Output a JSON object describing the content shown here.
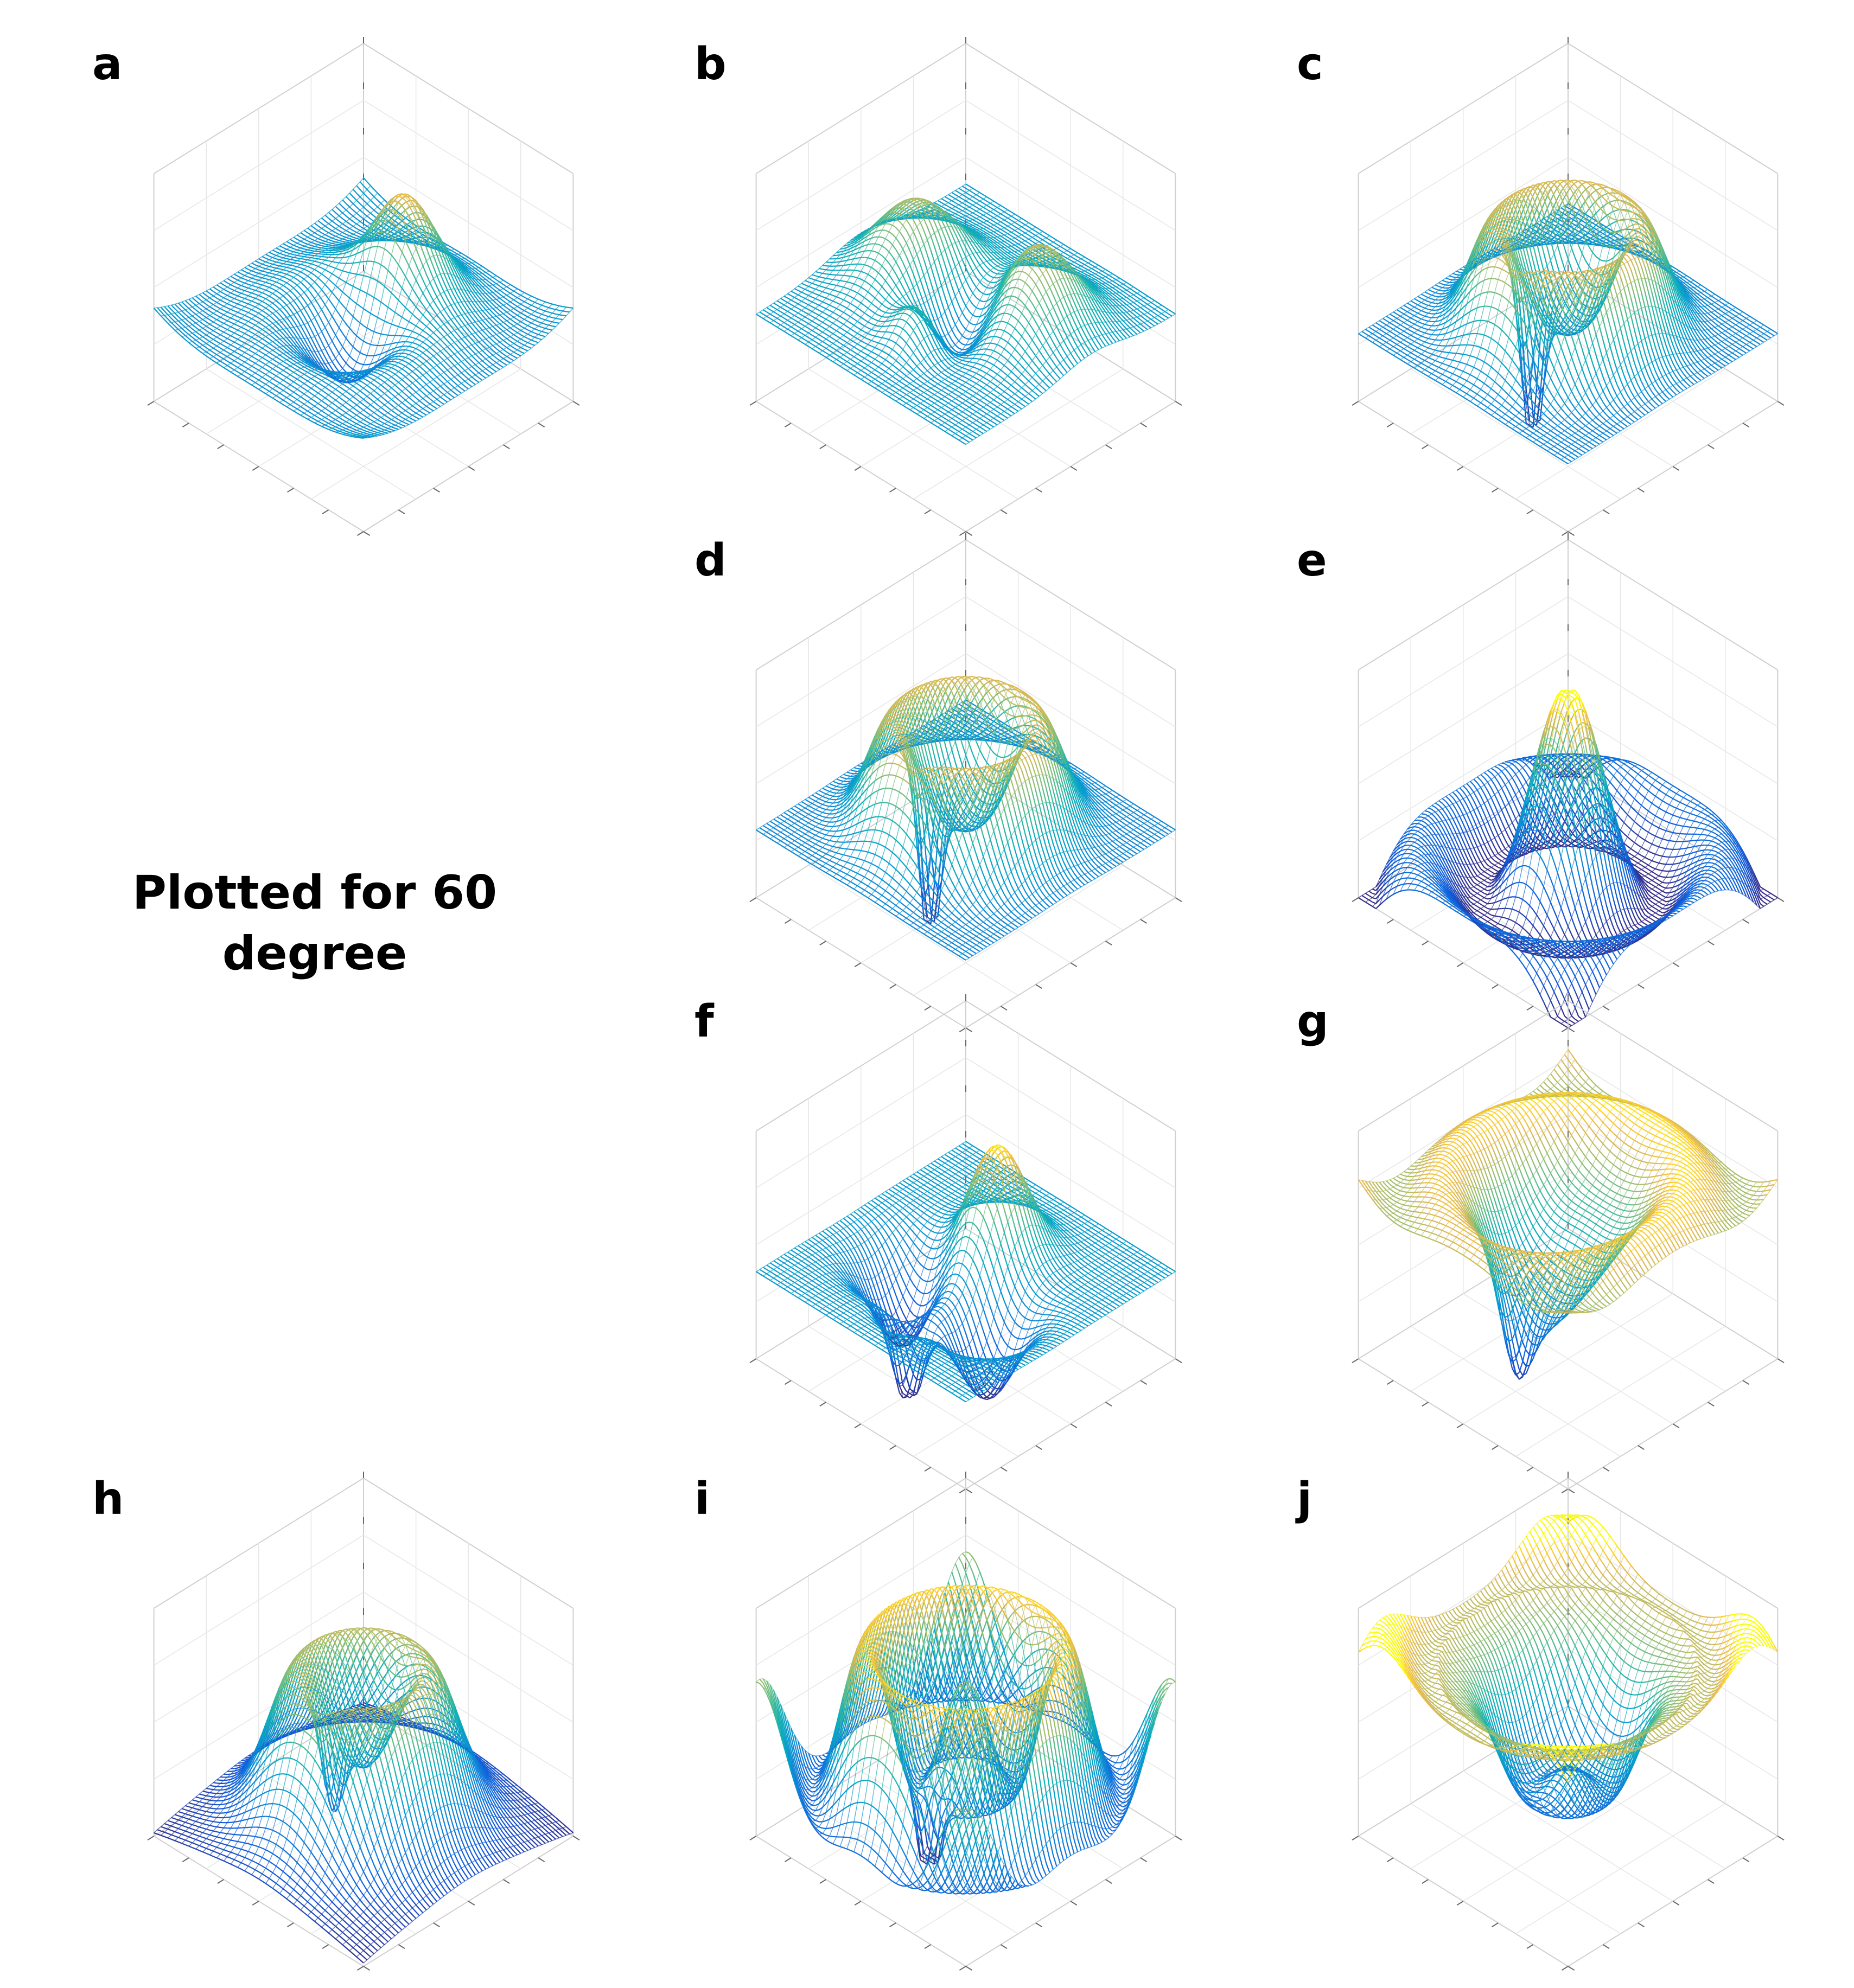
{
  "caption": {
    "line1": "Plotted for 60",
    "line2": "degree"
  },
  "chart_data": [
    {
      "panel": "a",
      "type": "surface",
      "colormap": "parula",
      "grid": true,
      "shape": "central peak with deep trough ring and raised corner lobes"
    },
    {
      "panel": "b",
      "type": "surface",
      "colormap": "parula",
      "grid": true,
      "shape": "two high ridges with central dip and raised center bump"
    },
    {
      "panel": "c",
      "type": "surface",
      "colormap": "parula",
      "grid": true,
      "shape": "raised ring plateau with sharp central downward spike"
    },
    {
      "panel": "d",
      "type": "surface",
      "colormap": "parula",
      "grid": true,
      "shape": "raised ring plateau with sharp central downward spike"
    },
    {
      "panel": "e",
      "type": "surface",
      "colormap": "parula",
      "grid": true,
      "shape": "central multi-peak with low corner troughs"
    },
    {
      "panel": "f",
      "type": "surface",
      "colormap": "parula",
      "grid": true,
      "shape": "central peak with symmetric side troughs and downward front spike"
    },
    {
      "panel": "g",
      "type": "surface",
      "colormap": "parula",
      "grid": true,
      "shape": "high outer ring with central basin"
    },
    {
      "panel": "h",
      "type": "surface",
      "colormap": "parula",
      "grid": true,
      "shape": "raised dome ring with central small dip and low corners"
    },
    {
      "panel": "i",
      "type": "surface",
      "colormap": "parula",
      "grid": true,
      "shape": "wavy ring with multiple ripples and central spike"
    },
    {
      "panel": "j",
      "type": "surface",
      "colormap": "parula",
      "grid": true,
      "shape": "bowl with raised outer edges and low center"
    }
  ]
}
